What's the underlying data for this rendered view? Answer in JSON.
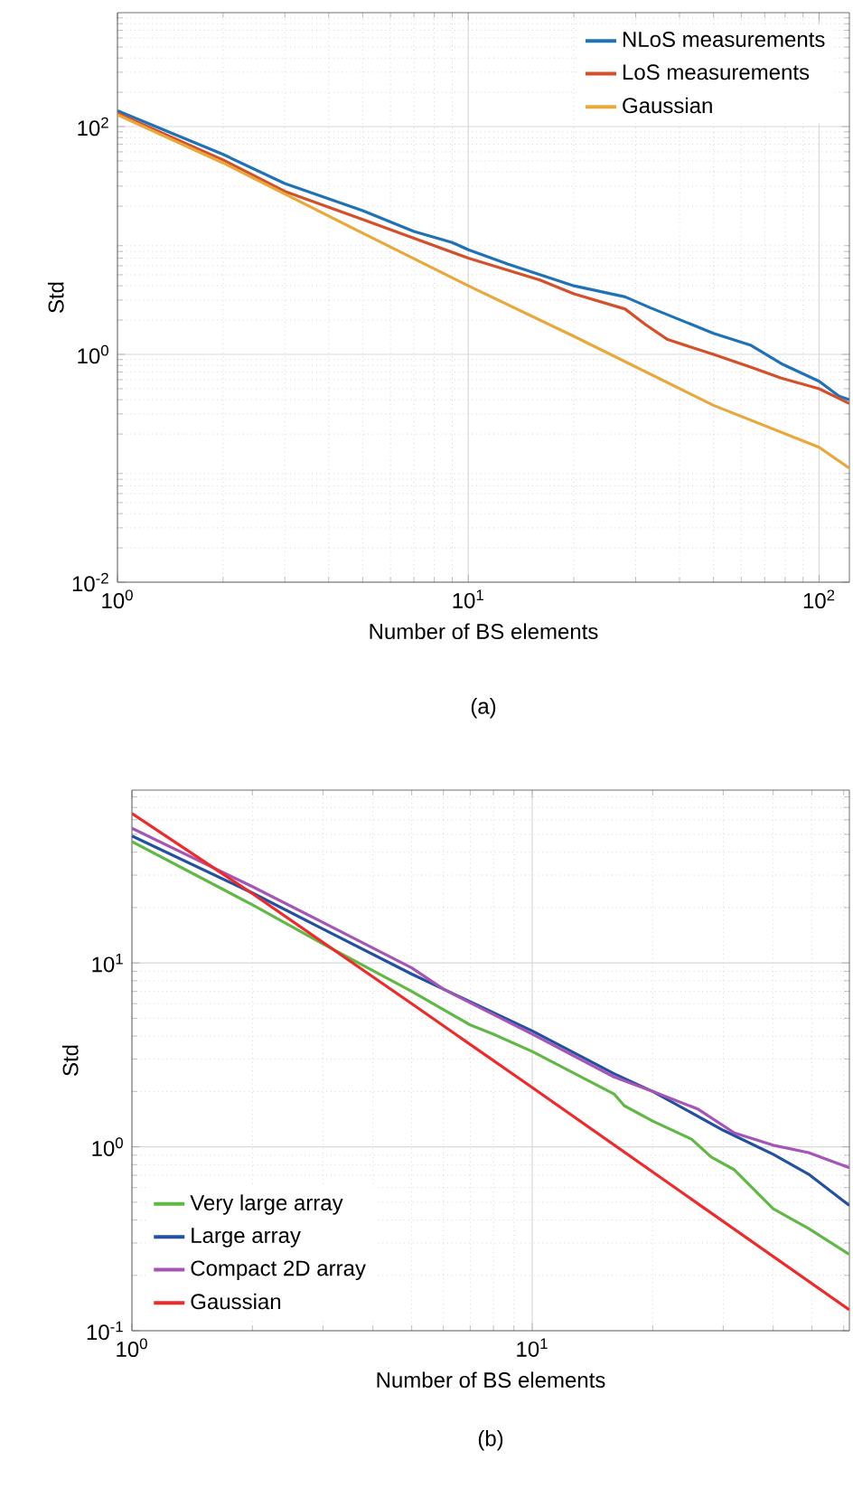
{
  "chart_data": [
    {
      "type": "line",
      "xlabel": "Number of BS elements",
      "ylabel": "Std",
      "log": "xy",
      "grid": true,
      "legend": "top right",
      "xlim": [
        1,
        122
      ],
      "ylim": [
        0.01,
        1000
      ],
      "xticks": [
        {
          "value": 1,
          "label": "10$^{0}$"
        },
        {
          "value": 10,
          "label": "10$^{1}$"
        },
        {
          "value": 100,
          "label": "10$^{2}$"
        }
      ],
      "yticks": [
        {
          "value": 0.01,
          "label": "10$^{-2}$"
        },
        {
          "value": 1,
          "label": "10$^{0}$"
        },
        {
          "value": 100,
          "label": "10$^{2}$"
        }
      ],
      "annotations": [
        "(a)"
      ],
      "series": [
        {
          "name": "NLoS measurements",
          "color": "#1f72b8",
          "x": [
            1,
            2,
            3,
            5,
            7,
            9,
            10,
            13,
            20,
            28,
            33,
            50,
            64,
            78,
            100,
            114,
            122
          ],
          "values": [
            138,
            57,
            31.6,
            18.3,
            12,
            9.6,
            8.3,
            6.2,
            4.0,
            3.2,
            2.57,
            1.53,
            1.2,
            0.83,
            0.58,
            0.43,
            0.4
          ]
        },
        {
          "name": "LoS measurements",
          "color": "#d4502a",
          "x": [
            1,
            2,
            3,
            5,
            10,
            16,
            20,
            28,
            32,
            37,
            50,
            64,
            78,
            100,
            122
          ],
          "values": [
            131,
            51,
            27,
            15.3,
            7.0,
            4.5,
            3.4,
            2.5,
            1.83,
            1.35,
            1.0,
            0.77,
            0.62,
            0.5,
            0.37
          ]
        },
        {
          "name": "Gaussian",
          "color": "#e8a93a",
          "x": [
            1,
            2,
            5,
            10,
            20,
            50,
            100,
            122
          ],
          "values": [
            127,
            48,
            11.6,
            4.0,
            1.44,
            0.357,
            0.153,
            0.1
          ]
        }
      ]
    },
    {
      "type": "line",
      "xlabel": "Number of BS elements",
      "ylabel": "Std",
      "log": "xy",
      "grid": true,
      "legend": "bottom left",
      "xlim": [
        1,
        62
      ],
      "ylim": [
        0.1,
        87
      ],
      "xticks": [
        {
          "value": 1,
          "label": "10$^{0}$"
        },
        {
          "value": 10,
          "label": "10$^{1}$"
        }
      ],
      "yticks": [
        {
          "value": 0.1,
          "label": "10$^{-1}$"
        },
        {
          "value": 1,
          "label": "10$^{0}$"
        },
        {
          "value": 10,
          "label": "10$^{1}$"
        }
      ],
      "annotations": [
        "(b)"
      ],
      "series": [
        {
          "name": "Very large array",
          "color": "#62b846",
          "x": [
            1,
            2,
            3,
            5,
            7,
            8,
            10,
            16,
            17,
            20,
            25,
            28,
            32,
            40,
            49,
            62
          ],
          "values": [
            45.7,
            20.7,
            12.7,
            7.0,
            4.6,
            4.1,
            3.3,
            1.94,
            1.67,
            1.38,
            1.1,
            0.88,
            0.75,
            0.46,
            0.36,
            0.26
          ]
        },
        {
          "name": "Large array",
          "color": "#2350a0",
          "x": [
            1,
            2,
            3,
            5,
            6,
            10,
            16,
            20,
            30,
            40,
            49,
            62
          ],
          "values": [
            49,
            24,
            15.3,
            8.7,
            7.2,
            4.27,
            2.5,
            2.0,
            1.23,
            0.91,
            0.71,
            0.48
          ]
        },
        {
          "name": "Compact 2D array",
          "color": "#a455b5",
          "x": [
            1,
            2,
            3,
            5,
            6,
            10,
            16,
            20,
            26,
            32,
            40,
            49,
            62
          ],
          "values": [
            54,
            26,
            16.6,
            9.4,
            7.2,
            4.1,
            2.4,
            2.0,
            1.6,
            1.19,
            1.02,
            0.93,
            0.77
          ]
        },
        {
          "name": "Gaussian",
          "color": "#ee2a2a",
          "x": [
            1,
            2,
            5,
            10,
            62
          ],
          "values": [
            65,
            23.8,
            6.0,
            2.1,
            0.13
          ]
        }
      ]
    }
  ]
}
